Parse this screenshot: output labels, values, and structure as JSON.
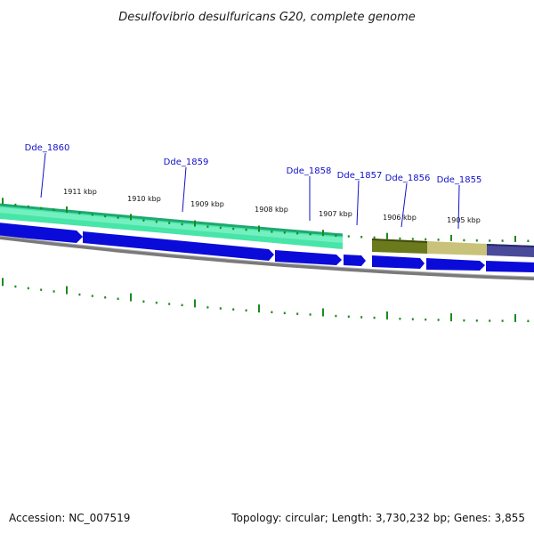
{
  "title": "Desulfovibrio desulfuricans G20, complete genome",
  "footer": {
    "accession": "Accession: NC_007519",
    "summary": "Topology: circular; Length: 3,730,232 bp; Genes: 3,855"
  },
  "genes": [
    {
      "label": "Dde_1860"
    },
    {
      "label": "Dde_1859"
    },
    {
      "label": "Dde_1858"
    },
    {
      "label": "Dde_1857"
    },
    {
      "label": "Dde_1856"
    },
    {
      "label": "Dde_1855"
    }
  ],
  "scale_labels": [
    "1911 kbp",
    "1910 kbp",
    "1909 kbp",
    "1908 kbp",
    "1907 kbp",
    "1906 kbp",
    "1905 kbp"
  ],
  "colors": {
    "gene_arrow": "#0b0bd9",
    "gene_label": "#1010c8",
    "tick": "#1c8a1c",
    "backbone": "#808080",
    "band_green": "#40e0a0",
    "band_olive": "#6b7a1c",
    "band_tan": "#c9c27a",
    "band_purple": "#4a4a9a"
  }
}
